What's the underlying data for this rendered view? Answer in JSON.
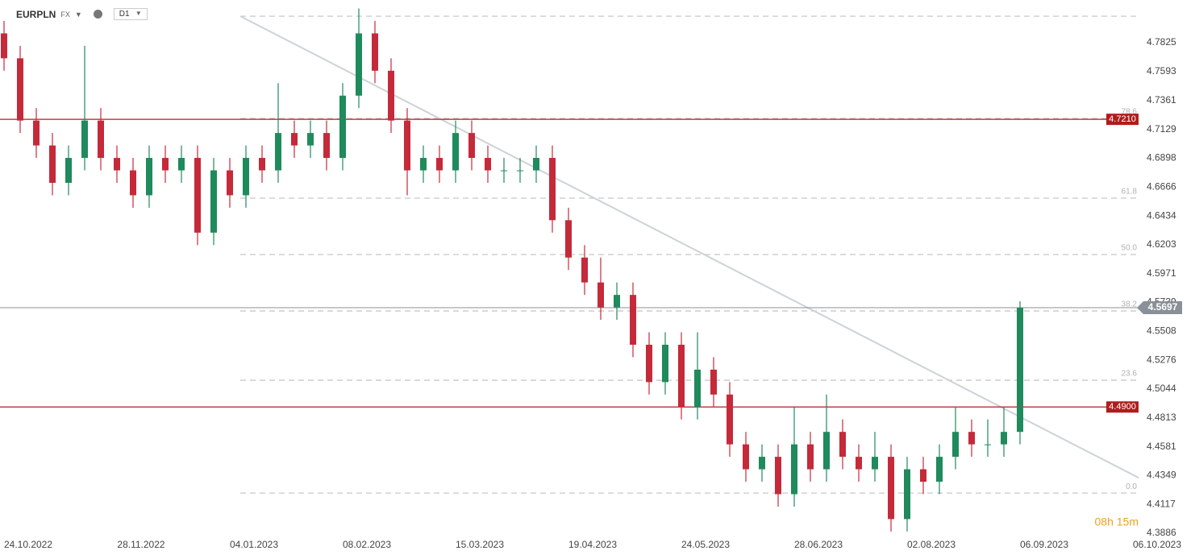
{
  "chart_data": {
    "type": "candlestick",
    "symbol": "EURPLN",
    "market": "FX",
    "interval": "D1",
    "countdown": "08h 15m",
    "xlim": [
      -0.25,
      70.35
    ],
    "xticks": [
      {
        "value": 1.5,
        "label": "24.10.2022"
      },
      {
        "value": 8.5,
        "label": "28.11.2022"
      },
      {
        "value": 15.5,
        "label": "04.01.2023"
      },
      {
        "value": 22.5,
        "label": "08.02.2023"
      },
      {
        "value": 29.5,
        "label": "15.03.2023"
      },
      {
        "value": 36.5,
        "label": "19.04.2023"
      },
      {
        "value": 43.5,
        "label": "24.05.2023"
      },
      {
        "value": 50.5,
        "label": "28.06.2023"
      },
      {
        "value": 57.5,
        "label": "02.08.2023"
      },
      {
        "value": 64.5,
        "label": "06.09.2023"
      },
      {
        "value": 71.5,
        "label": "06.10.2023"
      }
    ],
    "ylim": [
      4.3867,
      4.8168
    ],
    "yticks": [
      4.3886,
      4.4117,
      4.4349,
      4.4581,
      4.4813,
      4.5044,
      4.5276,
      4.5508,
      4.5739,
      4.5971,
      4.6203,
      4.6434,
      4.6666,
      4.6898,
      4.7129,
      4.7361,
      4.7593,
      4.7825
    ],
    "up_color": "#1f8a5c",
    "down_color": "#c42a3a",
    "open": [
      4.79,
      4.77,
      4.72,
      4.7,
      4.67,
      4.69,
      4.72,
      4.69,
      4.68,
      4.66,
      4.69,
      4.68,
      4.69,
      4.63,
      4.68,
      4.66,
      4.69,
      4.68,
      4.71,
      4.7,
      4.71,
      4.69,
      4.74,
      4.79,
      4.76,
      4.72,
      4.68,
      4.69,
      4.68,
      4.71,
      4.69,
      4.68,
      4.68,
      4.68,
      4.69,
      4.64,
      4.61,
      4.59,
      4.57,
      4.58,
      4.54,
      4.51,
      4.54,
      4.49,
      4.52,
      4.5,
      4.46,
      4.44,
      4.45,
      4.42,
      4.46,
      4.44,
      4.47,
      4.45,
      4.44,
      4.45,
      4.4,
      4.44,
      4.43,
      4.45,
      4.47,
      4.46,
      4.46,
      4.47
    ],
    "high": [
      4.8,
      4.78,
      4.73,
      4.71,
      4.7,
      4.78,
      4.73,
      4.7,
      4.69,
      4.7,
      4.7,
      4.7,
      4.7,
      4.69,
      4.69,
      4.7,
      4.7,
      4.75,
      4.72,
      4.72,
      4.72,
      4.75,
      4.81,
      4.8,
      4.77,
      4.73,
      4.7,
      4.7,
      4.72,
      4.72,
      4.7,
      4.69,
      4.69,
      4.7,
      4.7,
      4.65,
      4.62,
      4.61,
      4.59,
      4.59,
      4.55,
      4.55,
      4.55,
      4.55,
      4.53,
      4.51,
      4.47,
      4.46,
      4.46,
      4.49,
      4.47,
      4.5,
      4.48,
      4.46,
      4.47,
      4.46,
      4.45,
      4.45,
      4.46,
      4.49,
      4.48,
      4.48,
      4.49,
      4.575
    ],
    "low": [
      4.76,
      4.71,
      4.69,
      4.66,
      4.66,
      4.68,
      4.68,
      4.67,
      4.65,
      4.65,
      4.67,
      4.67,
      4.62,
      4.62,
      4.65,
      4.65,
      4.67,
      4.67,
      4.69,
      4.69,
      4.68,
      4.68,
      4.73,
      4.75,
      4.71,
      4.66,
      4.67,
      4.67,
      4.67,
      4.68,
      4.67,
      4.67,
      4.67,
      4.67,
      4.63,
      4.6,
      4.58,
      4.56,
      4.56,
      4.53,
      4.5,
      4.5,
      4.48,
      4.48,
      4.49,
      4.45,
      4.43,
      4.43,
      4.41,
      4.41,
      4.43,
      4.43,
      4.44,
      4.43,
      4.43,
      4.39,
      4.39,
      4.42,
      4.42,
      4.44,
      4.45,
      4.45,
      4.45,
      4.46
    ],
    "close": [
      4.77,
      4.72,
      4.7,
      4.67,
      4.69,
      4.72,
      4.69,
      4.68,
      4.66,
      4.69,
      4.68,
      4.69,
      4.63,
      4.68,
      4.66,
      4.69,
      4.68,
      4.71,
      4.7,
      4.71,
      4.69,
      4.74,
      4.79,
      4.76,
      4.72,
      4.68,
      4.69,
      4.68,
      4.71,
      4.69,
      4.68,
      4.68,
      4.68,
      4.69,
      4.64,
      4.61,
      4.59,
      4.57,
      4.58,
      4.54,
      4.51,
      4.54,
      4.49,
      4.52,
      4.5,
      4.46,
      4.44,
      4.45,
      4.42,
      4.46,
      4.44,
      4.47,
      4.45,
      4.44,
      4.45,
      4.4,
      4.44,
      4.43,
      4.45,
      4.47,
      4.46,
      4.46,
      4.47,
      4.5697
    ],
    "levels": [
      {
        "value": 4.721,
        "label": "4.7210",
        "color": "#b01c1c"
      },
      {
        "value": 4.49,
        "label": "4.4900",
        "color": "#b01c1c"
      }
    ],
    "last_price": {
      "value": 4.5697,
      "label": "4.5697",
      "color": "#8a9097"
    },
    "fib": [
      {
        "level": null,
        "price": 4.8038
      },
      {
        "level": 78.6,
        "price": 4.7217
      },
      {
        "level": 61.8,
        "price": 4.6577
      },
      {
        "level": 50.0,
        "price": 4.6124
      },
      {
        "level": 38.2,
        "price": 4.5671
      },
      {
        "level": 23.6,
        "price": 4.5115
      },
      {
        "level": 0.0,
        "price": 4.4209
      }
    ],
    "fib_labels": [
      "78.6",
      "61.8",
      "50.0",
      "38.2",
      "23.6",
      "0.0"
    ],
    "trendline": {
      "x": [
        14.65,
        70.35
      ],
      "y": [
        4.8038,
        4.4332
      ]
    }
  }
}
